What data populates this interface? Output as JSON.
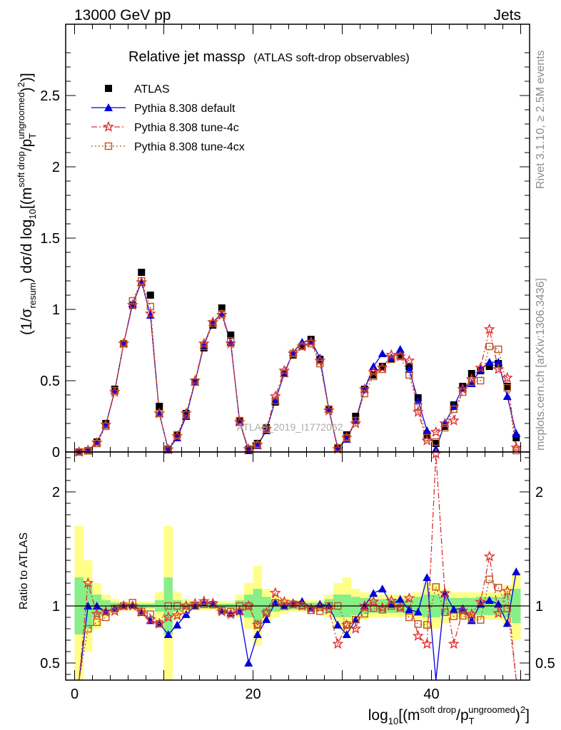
{
  "header": {
    "energy": "13000 GeV pp",
    "process": "Jets",
    "rivet": "Rivet 3.1.10, ≥ 2.5M events",
    "mcplots": "mcplots.cern.ch [arXiv:1306.3436]",
    "analysis_watermark": "ATLAS_2019_I1772062"
  },
  "chart_data": {
    "type": "line",
    "title_main": "Relative jet massρ",
    "title_sub": "(ATLAS soft-drop observables)",
    "xlabel": {
      "pre": "log",
      "sub": "10",
      "mid1": "[(m",
      "sup1": "soft drop",
      "mid2": "/p",
      "sub2": "T",
      "sup2": "ungroomed",
      "post": ")",
      "sup3": "2",
      "end": "]"
    },
    "ylabel": {
      "p1": "(1/σ",
      "s1": "resum",
      "p2": ") dσ/d log",
      "s2": "10",
      "p3": "[(m",
      "u1": "soft drop",
      "p4": "/p",
      "s3": "T",
      "u2": "ungroomed",
      "p5": ")",
      "u3": "2",
      "p6": ")]"
    },
    "ratio_ylabel": "Ratio to ATLAS",
    "xlim": [
      -1,
      51
    ],
    "ylim": [
      0,
      3.0
    ],
    "ratio_ylim": [
      0.35,
      2.35
    ],
    "x_ticks": [
      "0",
      "20",
      "40"
    ],
    "x_tick_values": [
      0,
      20,
      40
    ],
    "y_ticks": [
      "0",
      "0.5",
      "1",
      "1.5",
      "2",
      "2.5"
    ],
    "y_tick_values": [
      0,
      0.5,
      1,
      1.5,
      2,
      2.5
    ],
    "ratio_ticks": [
      "0.5",
      "1",
      "2"
    ],
    "ratio_tick_values": [
      0.5,
      1,
      2
    ],
    "legend_position": "top-left",
    "x": [
      0.5,
      1.5,
      2.5,
      3.5,
      4.5,
      5.5,
      6.5,
      7.5,
      8.5,
      9.5,
      10.5,
      11.5,
      12.5,
      13.5,
      14.5,
      15.5,
      16.5,
      17.5,
      18.5,
      19.5,
      20.5,
      21.5,
      22.5,
      23.5,
      24.5,
      25.5,
      26.5,
      27.5,
      28.5,
      29.5,
      30.5,
      31.5,
      32.5,
      33.5,
      34.5,
      35.5,
      36.5,
      37.5,
      38.5,
      39.5,
      40.5,
      41.5,
      42.5,
      43.5,
      44.5,
      45.5,
      46.5,
      47.5,
      48.5,
      49.5
    ],
    "series": [
      {
        "name": "ATLAS",
        "color": "#000000",
        "marker": "square",
        "values": [
          0.0,
          0.01,
          0.07,
          0.2,
          0.44,
          0.76,
          1.03,
          1.26,
          1.1,
          0.32,
          0.02,
          0.12,
          0.27,
          0.49,
          0.73,
          0.89,
          1.01,
          0.82,
          0.22,
          0.02,
          0.06,
          0.17,
          0.35,
          0.55,
          0.68,
          0.74,
          0.79,
          0.65,
          0.3,
          0.03,
          0.12,
          0.25,
          0.44,
          0.54,
          0.6,
          0.65,
          0.68,
          0.6,
          0.38,
          0.12,
          0.06,
          0.18,
          0.33,
          0.46,
          0.55,
          0.57,
          0.6,
          0.62,
          0.46,
          0.1
        ]
      },
      {
        "name": "Pythia 8.308 default",
        "color": "#0000dd",
        "marker": "triangle",
        "values": [
          0.0,
          0.01,
          0.07,
          0.19,
          0.43,
          0.76,
          1.04,
          1.19,
          0.96,
          0.27,
          0.015,
          0.1,
          0.25,
          0.49,
          0.75,
          0.91,
          0.97,
          0.77,
          0.21,
          0.01,
          0.045,
          0.15,
          0.36,
          0.55,
          0.7,
          0.77,
          0.78,
          0.66,
          0.3,
          0.025,
          0.09,
          0.22,
          0.44,
          0.6,
          0.69,
          0.66,
          0.72,
          0.58,
          0.36,
          0.15,
          0.02,
          0.2,
          0.32,
          0.45,
          0.48,
          0.58,
          0.63,
          0.63,
          0.39,
          0.13
        ]
      },
      {
        "name": "Pythia 8.308 tune-4c",
        "color": "#dd3333",
        "marker": "star",
        "values": [
          0.0,
          0.012,
          0.065,
          0.19,
          0.42,
          0.76,
          1.03,
          1.19,
          0.97,
          0.27,
          0.018,
          0.11,
          0.27,
          0.5,
          0.76,
          0.91,
          0.96,
          0.76,
          0.21,
          0.02,
          0.05,
          0.16,
          0.39,
          0.57,
          0.69,
          0.74,
          0.77,
          0.64,
          0.29,
          0.02,
          0.1,
          0.2,
          0.44,
          0.56,
          0.59,
          0.68,
          0.67,
          0.64,
          0.28,
          0.08,
          0.14,
          0.2,
          0.22,
          0.44,
          0.51,
          0.59,
          0.86,
          0.58,
          0.52,
          0.03
        ]
      },
      {
        "name": "Pythia 8.308 tune-4cx",
        "color": "#bb5522",
        "marker": "opensquare",
        "values": [
          0.0,
          0.008,
          0.06,
          0.18,
          0.43,
          0.76,
          1.06,
          1.2,
          1.02,
          0.27,
          0.02,
          0.12,
          0.26,
          0.49,
          0.74,
          0.9,
          0.97,
          0.78,
          0.22,
          0.02,
          0.05,
          0.16,
          0.36,
          0.55,
          0.69,
          0.74,
          0.76,
          0.62,
          0.3,
          0.03,
          0.1,
          0.22,
          0.41,
          0.53,
          0.58,
          0.65,
          0.67,
          0.54,
          0.32,
          0.1,
          0.07,
          0.17,
          0.3,
          0.42,
          0.49,
          0.5,
          0.74,
          0.72,
          0.45,
          0.01
        ]
      }
    ],
    "ratio_band_green": [
      0.25,
      0.2,
      0.1,
      0.05,
      0.03,
      0.02,
      0.02,
      0.02,
      0.02,
      0.05,
      0.25,
      0.05,
      0.03,
      0.02,
      0.02,
      0.02,
      0.02,
      0.02,
      0.05,
      0.1,
      0.15,
      0.08,
      0.05,
      0.04,
      0.03,
      0.03,
      0.03,
      0.03,
      0.06,
      0.1,
      0.1,
      0.08,
      0.07,
      0.06,
      0.06,
      0.06,
      0.06,
      0.06,
      0.08,
      0.1,
      0.1,
      0.08,
      0.07,
      0.07,
      0.07,
      0.08,
      0.08,
      0.08,
      0.1,
      0.15
    ],
    "ratio_band_yellow": [
      0.7,
      0.4,
      0.2,
      0.1,
      0.06,
      0.04,
      0.04,
      0.04,
      0.04,
      0.12,
      0.7,
      0.12,
      0.06,
      0.04,
      0.04,
      0.04,
      0.04,
      0.04,
      0.1,
      0.2,
      0.35,
      0.15,
      0.1,
      0.07,
      0.05,
      0.05,
      0.05,
      0.05,
      0.1,
      0.2,
      0.25,
      0.15,
      0.12,
      0.1,
      0.1,
      0.1,
      0.1,
      0.1,
      0.12,
      0.2,
      0.2,
      0.15,
      0.12,
      0.12,
      0.12,
      0.12,
      0.12,
      0.12,
      0.18,
      0.3
    ]
  }
}
